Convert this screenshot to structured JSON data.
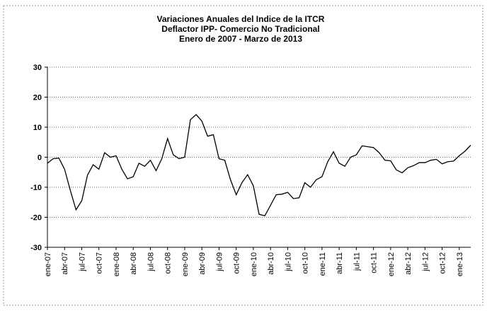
{
  "chart_data": {
    "type": "line",
    "title": [
      "Variaciones Anuales del Indice de la ITCR",
      "Deflactor IPP- Comercio No Tradicional",
      "Enero de 2007 - Marzo de 2013"
    ],
    "categories": [
      "ene-07",
      null,
      null,
      "abr-07",
      null,
      null,
      "jul-07",
      null,
      null,
      "oct-07",
      null,
      null,
      "ene-08",
      null,
      null,
      "abr-08",
      null,
      null,
      "jul-08",
      null,
      null,
      "oct-08",
      null,
      null,
      "ene-09",
      null,
      null,
      "abr-09",
      null,
      null,
      "jul-09",
      null,
      null,
      "oct-09",
      null,
      null,
      "ene-10",
      null,
      null,
      "abr-10",
      null,
      null,
      "jul-10",
      null,
      null,
      "oct-10",
      null,
      null,
      "ene-11",
      null,
      null,
      "abr-11",
      null,
      null,
      "jul-11",
      null,
      null,
      "oct-11",
      null,
      null,
      "ene-12",
      null,
      null,
      "abr-12",
      null,
      null,
      "jul-12",
      null,
      null,
      "oct-12",
      null,
      null,
      "ene-13",
      null,
      null
    ],
    "values": [
      -2,
      -0.5,
      -0.3,
      -4,
      -11,
      -17.5,
      -14.5,
      -6,
      -2.5,
      -4,
      1.5,
      0,
      0.5,
      -4,
      -7.2,
      -6.5,
      -2,
      -3,
      -1,
      -4.5,
      -0.5,
      6.2,
      0.8,
      -0.5,
      0,
      12.5,
      14.2,
      12,
      7,
      7.5,
      -0.5,
      -1,
      -7.5,
      -12.5,
      -8.5,
      -5.8,
      -9.5,
      -19,
      -19.5,
      -16,
      -12.5,
      -12.3,
      -11.7,
      -13.8,
      -13.5,
      -8.5,
      -10,
      -7.5,
      -6.5,
      -1.5,
      1.8,
      -2,
      -3,
      0,
      0.8,
      3.8,
      3.5,
      3.2,
      1.5,
      -1,
      -1.2,
      -4.2,
      -5.2,
      -3.5,
      -2.8,
      -1.8,
      -1.8,
      -1,
      -0.7,
      -2.2,
      -1.5,
      -1.3,
      0.5,
      2,
      4
    ],
    "color": "#000000",
    "ylim": [
      -30,
      30
    ],
    "yticks": [
      -30,
      -20,
      -10,
      0,
      10,
      20,
      30
    ],
    "grid": true
  }
}
